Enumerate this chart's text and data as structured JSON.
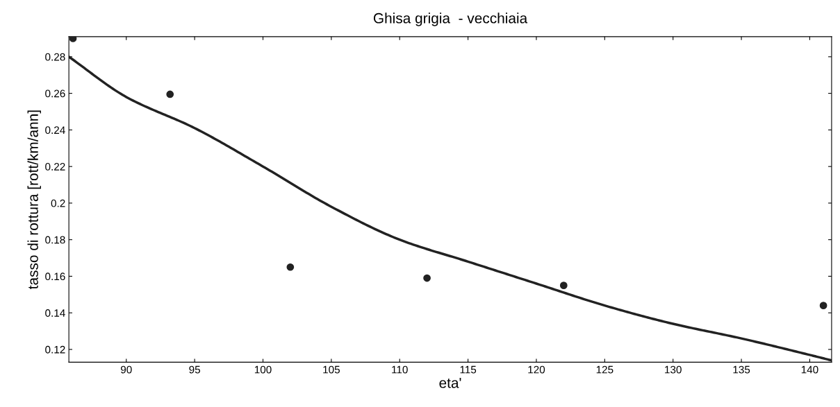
{
  "chart_data": {
    "type": "scatter",
    "title": "Ghisa grigia  - vecchiaia",
    "xlabel": "eta'",
    "ylabel": "tasso di rottura [rott/km/ann]",
    "xlim": [
      85.8,
      141.6
    ],
    "ylim": [
      0.113,
      0.291
    ],
    "xticks": [
      90,
      95,
      100,
      105,
      110,
      115,
      120,
      125,
      130,
      135,
      140
    ],
    "yticks": [
      0.12,
      0.14,
      0.16,
      {
        "value": 0.18,
        "label": "0.18"
      },
      {
        "value": 0.2,
        "label": "0.2"
      },
      0.22,
      0.24,
      0.26,
      0.28
    ],
    "grid": false,
    "legend": false,
    "series": [
      {
        "color": "#222222",
        "marker": "circle",
        "x": [
          86.1,
          93.2,
          102,
          112,
          122,
          141
        ],
        "values": [
          0.29,
          0.2595,
          0.165,
          0.159,
          0.155,
          0.144
        ]
      },
      {
        "type": "line",
        "color": "#222222",
        "marker": "none",
        "line_style": "solid",
        "x": [
          85.8,
          90,
          95,
          100,
          105,
          110,
          115,
          120,
          125,
          130,
          135,
          140,
          141.6
        ],
        "values": [
          0.28,
          0.258,
          0.241,
          0.22,
          0.198,
          0.18,
          0.168,
          0.156,
          0.144,
          0.134,
          0.126,
          0.117,
          0.114
        ]
      }
    ]
  }
}
